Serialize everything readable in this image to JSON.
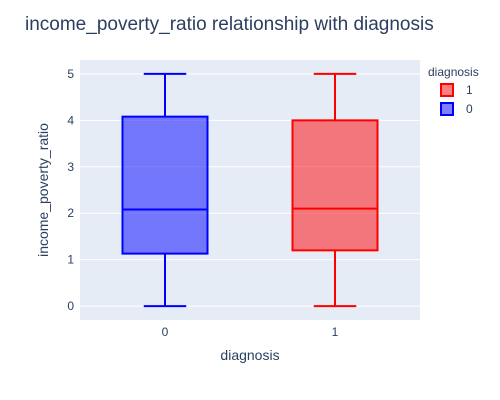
{
  "chart_data": {
    "type": "box",
    "title": "income_poverty_ratio relationship with diagnosis",
    "xlabel": "diagnosis",
    "ylabel": "income_poverty_ratio",
    "categories": [
      "0",
      "1"
    ],
    "ylim": [
      -0.3,
      5.3
    ],
    "yticks": [
      0,
      1,
      2,
      3,
      4,
      5
    ],
    "grid": true,
    "legend": {
      "title": "diagnosis",
      "position": "top-right"
    },
    "series": [
      {
        "name": "1",
        "category": "1",
        "color": "#ff0000",
        "min": 0,
        "q1": 1.2,
        "median": 2.1,
        "q3": 4.0,
        "max": 5
      },
      {
        "name": "0",
        "category": "0",
        "color": "#0000ff",
        "min": 0,
        "q1": 1.13,
        "median": 2.08,
        "q3": 4.08,
        "max": 5
      }
    ]
  }
}
